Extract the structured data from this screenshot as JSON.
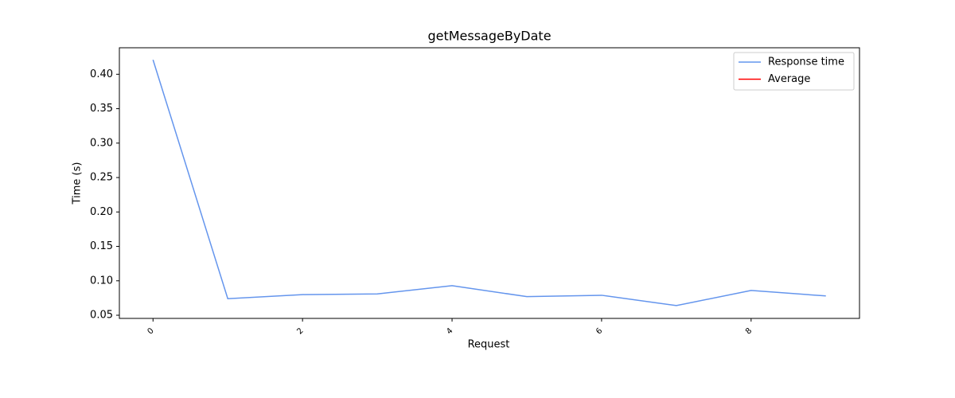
{
  "chart_data": {
    "type": "line",
    "title": "getMessageByDate",
    "xlabel": "Request",
    "ylabel": "Time (s)",
    "x": [
      0,
      1,
      2,
      3,
      4,
      5,
      6,
      7,
      8,
      9
    ],
    "series": [
      {
        "name": "Response time",
        "color": "#6495ed",
        "values": [
          0.421,
          0.074,
          0.08,
          0.081,
          0.093,
          0.077,
          0.079,
          0.064,
          0.086,
          0.078
        ]
      },
      {
        "name": "Average",
        "color": "#ff0000",
        "values": [
          null,
          null,
          null,
          null,
          null,
          null,
          null,
          null,
          null,
          null
        ]
      }
    ],
    "xlim": [
      -0.45,
      9.45
    ],
    "xticks": [
      0,
      2,
      4,
      6,
      8
    ],
    "ylim": [
      0.0454,
      0.4385
    ],
    "yticks": [
      0.05,
      {
        "value": 0.1,
        "label": "0.10"
      },
      0.15,
      {
        "value": 0.2,
        "label": "0.20"
      },
      0.25,
      {
        "value": 0.3,
        "label": "0.30"
      },
      0.35,
      {
        "value": 0.4,
        "label": "0.40"
      }
    ],
    "legend": "upper right"
  }
}
